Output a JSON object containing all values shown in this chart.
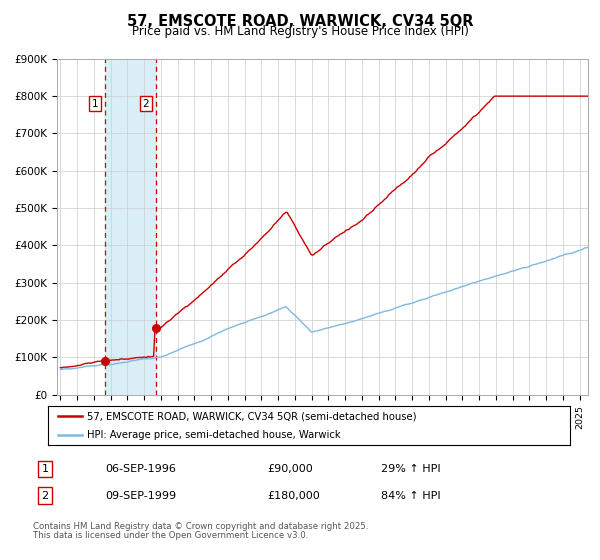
{
  "title": "57, EMSCOTE ROAD, WARWICK, CV34 5QR",
  "subtitle": "Price paid vs. HM Land Registry's House Price Index (HPI)",
  "ylim": [
    0,
    900000
  ],
  "yticks": [
    0,
    100000,
    200000,
    300000,
    400000,
    500000,
    600000,
    700000,
    800000,
    900000
  ],
  "ytick_labels": [
    "£0",
    "£100K",
    "£200K",
    "£300K",
    "£400K",
    "£500K",
    "£600K",
    "£700K",
    "£800K",
    "£900K"
  ],
  "hpi_color": "#7fb8e0",
  "price_color": "#cc0000",
  "marker1_year": 1996.69,
  "marker1_price": 90000,
  "marker2_year": 1999.69,
  "marker2_price": 180000,
  "shade_color": "#daeef7",
  "vline_color": "#cc0000",
  "legend_label_price": "57, EMSCOTE ROAD, WARWICK, CV34 5QR (semi-detached house)",
  "legend_label_hpi": "HPI: Average price, semi-detached house, Warwick",
  "table_rows": [
    {
      "num": "1",
      "date": "06-SEP-1996",
      "price": "£90,000",
      "hpi": "29% ↑ HPI"
    },
    {
      "num": "2",
      "date": "09-SEP-1999",
      "price": "£180,000",
      "hpi": "84% ↑ HPI"
    }
  ],
  "footnote1": "Contains HM Land Registry data © Crown copyright and database right 2025.",
  "footnote2": "This data is licensed under the Open Government Licence v3.0.",
  "xmin": 1993.8,
  "xmax": 2025.5,
  "background_color": "#ffffff",
  "grid_color": "#cccccc"
}
